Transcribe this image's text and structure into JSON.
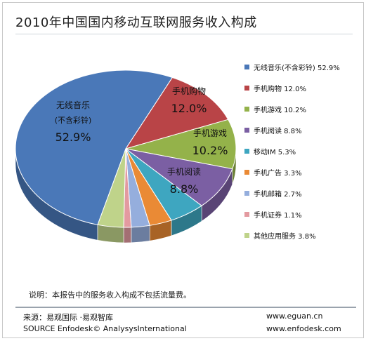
{
  "chart_data": {
    "type": "pie",
    "title": "2010年中国国内移动互联网服务收入构成",
    "categories": [
      "无线音乐(不含彩铃)",
      "手机购物",
      "手机游戏",
      "手机阅读",
      "移动IM",
      "手机广告",
      "手机邮箱",
      "手机证券",
      "其他应用服务"
    ],
    "values": [
      52.9,
      12.0,
      10.2,
      8.8,
      5.3,
      3.3,
      2.7,
      1.1,
      3.8
    ],
    "colors": [
      "#4a78b8",
      "#b94447",
      "#94b24a",
      "#7b5fa3",
      "#3ea6c0",
      "#ea8a35",
      "#95aedd",
      "#e39aa0",
      "#bfd38a"
    ],
    "slice_labels": [
      {
        "name": "无线音乐",
        "sub": "(不含彩铃)",
        "value": "52.9%"
      },
      {
        "name": "手机购物",
        "value": "12.0%"
      },
      {
        "name": "手机游戏",
        "value": "10.2%"
      },
      {
        "name": "手机阅读",
        "value": "8.8%"
      }
    ],
    "legend": [
      "无线音乐(不含彩铃) 52.9%",
      "手机购物 12.0%",
      "手机游戏 10.2%",
      "手机阅读 8.8%",
      "移动IM 5.3%",
      "手机广告 3.3%",
      "手机邮箱 2.7%",
      "手机证券 1.1%",
      "其他应用服务 3.8%"
    ],
    "legend_position": "right"
  },
  "note": "说明：本报告中的服务收入构成不包括流量费。",
  "source_cn": "来源：易观国际 ·易观智库",
  "source_en": "SOURCE Enfodesk© AnalysysInternational",
  "url1": "www.eguan.cn",
  "url2": "www.enfodesk.com"
}
